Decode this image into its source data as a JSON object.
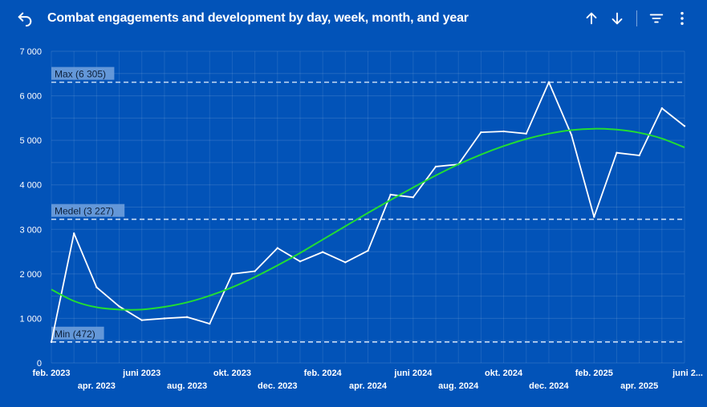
{
  "header": {
    "title": "Combat engagements and development by day, week, month, and year"
  },
  "icons": {
    "back": "undo-arrow-icon",
    "sort_asc": "arrow-up-icon",
    "sort_desc": "arrow-down-icon",
    "filter": "filter-icon",
    "more": "more-vertical-icon"
  },
  "colors": {
    "background": "#0253b8",
    "series": "#ffffff",
    "trend": "#22dd33",
    "reference": "#c8dcf5",
    "label_box": "#6e9fdc"
  },
  "chart_data": {
    "type": "line",
    "x": [
      "2023-02",
      "2023-03",
      "2023-04",
      "2023-05",
      "2023-06",
      "2023-07",
      "2023-08",
      "2023-09",
      "2023-10",
      "2023-11",
      "2023-12",
      "2024-01",
      "2024-02",
      "2024-03",
      "2024-04",
      "2024-05",
      "2024-06",
      "2024-07",
      "2024-08",
      "2024-09",
      "2024-10",
      "2024-11",
      "2024-12",
      "2025-01",
      "2025-02",
      "2025-03",
      "2025-04",
      "2025-05",
      "2025-06"
    ],
    "series": [
      {
        "values": [
          470,
          2910,
          1700,
          1270,
          960,
          1000,
          1030,
          880,
          2000,
          2060,
          2580,
          2280,
          2490,
          2260,
          2520,
          3780,
          3720,
          4410,
          4460,
          5180,
          5200,
          5150,
          6305,
          5120,
          3280,
          4720,
          4660,
          5720,
          5320
        ]
      },
      {
        "values": [
          1650,
          1390,
          1250,
          1200,
          1200,
          1260,
          1360,
          1510,
          1700,
          1930,
          2190,
          2470,
          2770,
          3070,
          3370,
          3660,
          3940,
          4210,
          4460,
          4680,
          4870,
          5030,
          5150,
          5230,
          5260,
          5240,
          5170,
          5040,
          4840
        ]
      }
    ],
    "ylim": [
      0,
      7000
    ],
    "yticks": [
      "0",
      "1 000",
      "2 000",
      "3 000",
      "4 000",
      "5 000",
      "6 000",
      "7 000"
    ],
    "xtick_labels": [
      {
        "i": 0,
        "label": "feb. 2023",
        "row": 1
      },
      {
        "i": 2,
        "label": "apr. 2023",
        "row": 2
      },
      {
        "i": 4,
        "label": "juni 2023",
        "row": 1
      },
      {
        "i": 6,
        "label": "aug. 2023",
        "row": 2
      },
      {
        "i": 8,
        "label": "okt. 2023",
        "row": 1
      },
      {
        "i": 10,
        "label": "dec. 2023",
        "row": 2
      },
      {
        "i": 12,
        "label": "feb. 2024",
        "row": 1
      },
      {
        "i": 14,
        "label": "apr. 2024",
        "row": 2
      },
      {
        "i": 16,
        "label": "juni 2024",
        "row": 1
      },
      {
        "i": 18,
        "label": "aug. 2024",
        "row": 2
      },
      {
        "i": 20,
        "label": "okt. 2024",
        "row": 1
      },
      {
        "i": 22,
        "label": "dec. 2024",
        "row": 2
      },
      {
        "i": 24,
        "label": "feb. 2025",
        "row": 1
      },
      {
        "i": 26,
        "label": "apr. 2025",
        "row": 2
      },
      {
        "i": 28,
        "label": "juni 2...",
        "row": 1
      }
    ],
    "reference_lines": [
      {
        "label": "Max (6 305)",
        "value": 6305
      },
      {
        "label": "Medel (3 227)",
        "value": 3227
      },
      {
        "label": "Min (472)",
        "value": 472
      }
    ],
    "grid": true
  }
}
